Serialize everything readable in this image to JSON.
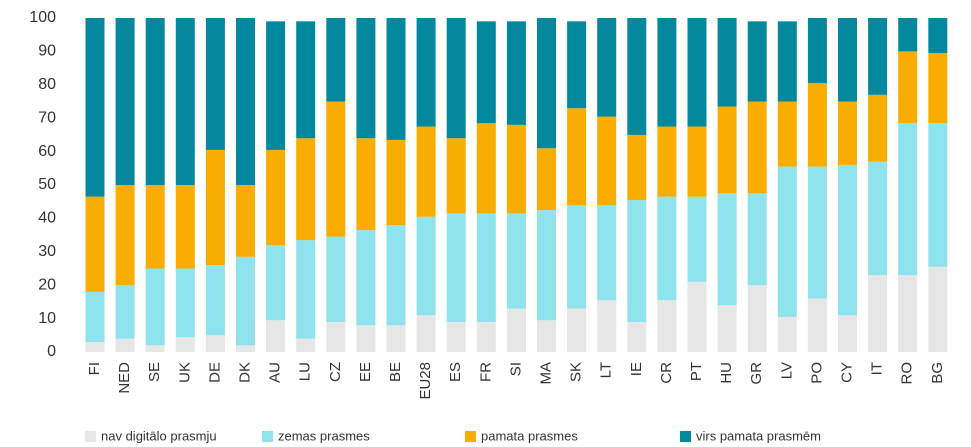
{
  "chart_data": {
    "type": "stacked_bar",
    "categories": [
      "FI",
      "NED",
      "SE",
      "UK",
      "DE",
      "DK",
      "AU",
      "LU",
      "CZ",
      "EE",
      "BE",
      "EU28",
      "ES",
      "FR",
      "SI",
      "MA",
      "SK",
      "LT",
      "IE",
      "CR",
      "PT",
      "HU",
      "GR",
      "LV",
      "PO",
      "CY",
      "IT",
      "RO",
      "BG"
    ],
    "series": [
      {
        "name": "nav digitālo prasmju",
        "color": "#e6e6e6",
        "values": [
          3,
          4,
          2,
          4.5,
          5,
          2,
          9.5,
          4,
          9,
          8,
          8,
          11,
          9,
          9,
          13,
          9.5,
          13,
          15.5,
          9,
          15.5,
          21,
          14,
          20,
          10.5,
          16,
          11,
          23,
          23,
          25.5
        ]
      },
      {
        "name": "zemas prasmes",
        "color": "#8ee3ec",
        "values": [
          15,
          16,
          23,
          20.5,
          21,
          26.5,
          22.5,
          29.5,
          25.5,
          28.5,
          30,
          29.5,
          32.5,
          32.5,
          28.5,
          33,
          31,
          28.5,
          36.5,
          31,
          25.5,
          33.5,
          27.5,
          45,
          39.5,
          45,
          34,
          45.5,
          43
        ]
      },
      {
        "name": "pamata prasmes",
        "color": "#f8ad00",
        "values": [
          28.5,
          30,
          25,
          25,
          34.5,
          21.5,
          28.5,
          30.5,
          40.5,
          27.5,
          25.5,
          27,
          22.5,
          27,
          26.5,
          18.5,
          29,
          26.5,
          19.5,
          21,
          21,
          26,
          27.5,
          19.5,
          25,
          19,
          20,
          21.5,
          21
        ]
      },
      {
        "name": "virs pamata prasmēm",
        "color": "#03889e",
        "values": [
          53.5,
          50,
          50,
          50,
          39.5,
          50,
          38.5,
          35,
          25,
          36,
          36.5,
          32.5,
          36,
          30.5,
          31,
          39,
          26,
          29.5,
          35,
          32.5,
          32.5,
          26.5,
          24,
          24,
          19.5,
          25,
          23,
          10,
          10.5
        ]
      }
    ],
    "ylim": [
      0,
      100
    ],
    "yticks": [
      0,
      10,
      20,
      30,
      40,
      50,
      60,
      70,
      80,
      90,
      100
    ],
    "grid": false
  }
}
